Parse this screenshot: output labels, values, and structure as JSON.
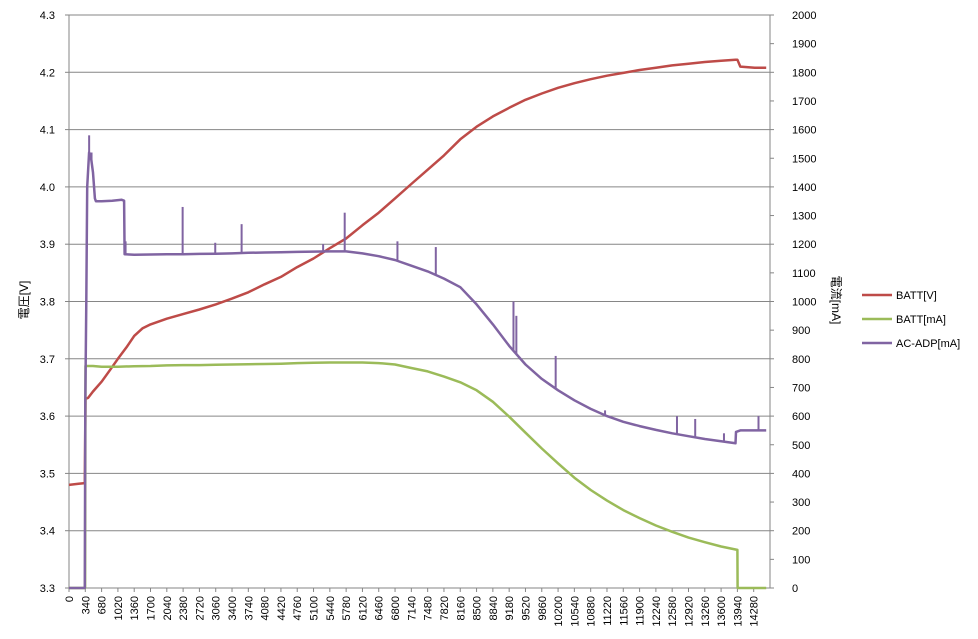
{
  "chart_data": {
    "type": "line",
    "title": "",
    "ylabel": "電圧[V]",
    "y2label": "電流[mA]",
    "y_ticks": [
      "3.3",
      "3.4",
      "3.5",
      "3.6",
      "3.7",
      "3.8",
      "3.9",
      "4.0",
      "4.1",
      "4.2",
      "4.3"
    ],
    "y2_ticks": [
      "0",
      "100",
      "200",
      "300",
      "400",
      "500",
      "600",
      "700",
      "800",
      "900",
      "1000",
      "1100",
      "1200",
      "1300",
      "1400",
      "1500",
      "1600",
      "1700",
      "1800",
      "1900",
      "2000"
    ],
    "x_ticks": [
      "0",
      "340",
      "680",
      "1020",
      "1360",
      "1700",
      "2040",
      "2380",
      "2720",
      "3060",
      "3400",
      "3740",
      "4080",
      "4420",
      "4760",
      "5100",
      "5440",
      "5780",
      "6120",
      "6460",
      "6800",
      "7140",
      "7480",
      "7820",
      "8160",
      "8500",
      "8840",
      "9180",
      "9520",
      "9860",
      "10200",
      "10540",
      "10880",
      "11220",
      "11560",
      "11900",
      "12240",
      "12580",
      "12920",
      "13260",
      "13600",
      "13940",
      "14280"
    ],
    "ylim": [
      3.3,
      4.3
    ],
    "y2lim": [
      0,
      2000
    ],
    "xlim": [
      0,
      14620
    ],
    "grid": true,
    "legend_position": "right",
    "series": [
      {
        "name": "BATT[V]",
        "axis": "left",
        "color": "#be4b48",
        "x": [
          0,
          200,
          330,
          345,
          400,
          500,
          680,
          850,
          1020,
          1200,
          1360,
          1530,
          1700,
          2040,
          2380,
          2720,
          3060,
          3400,
          3740,
          4080,
          4420,
          4760,
          5100,
          5440,
          5780,
          6120,
          6460,
          6800,
          7140,
          7480,
          7820,
          8160,
          8500,
          8840,
          9180,
          9520,
          9860,
          10200,
          10540,
          10880,
          11220,
          11560,
          11900,
          12240,
          12580,
          12920,
          13260,
          13600,
          13900,
          13940,
          14000,
          14300,
          14540
        ],
        "y": [
          3.48,
          3.482,
          3.483,
          3.63,
          3.632,
          3.643,
          3.66,
          3.68,
          3.7,
          3.72,
          3.74,
          3.753,
          3.76,
          3.77,
          3.778,
          3.786,
          3.795,
          3.805,
          3.816,
          3.83,
          3.843,
          3.86,
          3.875,
          3.893,
          3.91,
          3.933,
          3.955,
          3.98,
          4.005,
          4.03,
          4.055,
          4.083,
          4.105,
          4.123,
          4.138,
          4.152,
          4.163,
          4.173,
          4.181,
          4.188,
          4.194,
          4.199,
          4.204,
          4.208,
          4.212,
          4.215,
          4.218,
          4.22,
          4.222,
          4.222,
          4.21,
          4.208,
          4.208
        ]
      },
      {
        "name": "BATT[mA]",
        "axis": "right",
        "color": "#9bbb59",
        "x": [
          0,
          335,
          345,
          500,
          680,
          1020,
          1360,
          1700,
          2040,
          2380,
          2720,
          3060,
          3400,
          3740,
          4080,
          4420,
          4760,
          5100,
          5440,
          5780,
          6120,
          6460,
          6800,
          7140,
          7480,
          7820,
          8160,
          8500,
          8840,
          9180,
          9520,
          9860,
          10200,
          10540,
          10880,
          11220,
          11560,
          11900,
          12240,
          12580,
          12920,
          13260,
          13600,
          13940,
          13945,
          14200,
          14540
        ],
        "y": [
          0,
          0,
          775,
          775,
          772,
          772,
          774,
          775,
          777,
          778,
          778,
          779,
          780,
          781,
          782,
          783,
          785,
          786,
          787,
          787,
          787,
          785,
          780,
          768,
          756,
          738,
          718,
          690,
          650,
          598,
          542,
          487,
          435,
          385,
          342,
          305,
          272,
          244,
          218,
          196,
          176,
          160,
          145,
          133,
          0,
          0,
          0
        ]
      },
      {
        "name": "AC-ADP[mA]",
        "axis": "right",
        "color": "#8064a2",
        "x": [
          0,
          330,
          340,
          360,
          380,
          420,
          460,
          500,
          540,
          560,
          680,
          900,
          1100,
          1150,
          1160,
          1360,
          1700,
          2040,
          2380,
          2720,
          3060,
          3400,
          3740,
          4080,
          4420,
          4760,
          5100,
          5440,
          5780,
          6120,
          6460,
          6800,
          7140,
          7480,
          7820,
          8160,
          8500,
          8840,
          9180,
          9520,
          9860,
          10200,
          10540,
          10880,
          11220,
          11560,
          11900,
          12240,
          12580,
          12920,
          13260,
          13600,
          13900,
          13910,
          14000,
          14300,
          14540
        ],
        "y": [
          0,
          0,
          650,
          1000,
          1400,
          1520,
          1500,
          1450,
          1360,
          1350,
          1350,
          1352,
          1355,
          1352,
          1165,
          1163,
          1164,
          1165,
          1165,
          1166,
          1167,
          1168,
          1170,
          1171,
          1172,
          1173,
          1174,
          1175,
          1175,
          1168,
          1158,
          1145,
          1125,
          1105,
          1080,
          1050,
          990,
          920,
          845,
          780,
          730,
          690,
          655,
          625,
          600,
          580,
          565,
          552,
          540,
          530,
          520,
          512,
          505,
          545,
          550,
          550,
          550
        ],
        "spikes": [
          [
            420,
            1580
          ],
          [
            470,
            1520
          ],
          [
            1180,
            1210
          ],
          [
            2370,
            1330
          ],
          [
            3050,
            1205
          ],
          [
            3600,
            1270
          ],
          [
            5300,
            1200
          ],
          [
            5750,
            1310
          ],
          [
            6850,
            1210
          ],
          [
            7650,
            1190
          ],
          [
            9270,
            1000
          ],
          [
            9330,
            950
          ],
          [
            10150,
            810
          ],
          [
            11180,
            620
          ],
          [
            12680,
            600
          ],
          [
            13060,
            590
          ],
          [
            13660,
            540
          ],
          [
            14380,
            600
          ]
        ]
      }
    ]
  }
}
